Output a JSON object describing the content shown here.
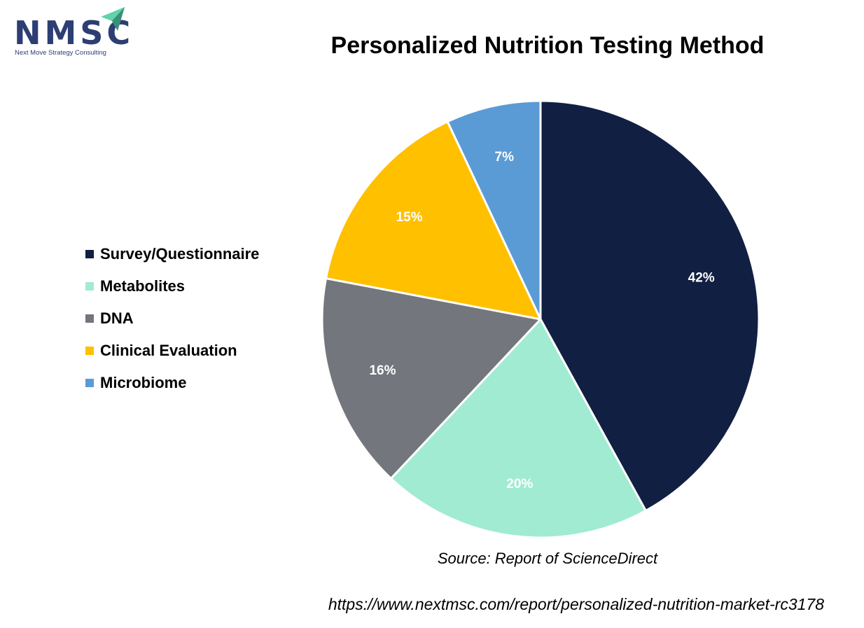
{
  "brand": {
    "name": "NMSC",
    "tagline": "Next Move Strategy Consulting",
    "color": "#2c3e73",
    "accent_color": "#5fd4a9"
  },
  "chart_data": {
    "type": "pie",
    "title": "Personalized Nutrition Testing Method",
    "start_angle_deg": 0,
    "direction": "clockwise",
    "legend_position": "left",
    "slices": [
      {
        "name": "Survey/Questionnaire",
        "value": 42,
        "label": "42%",
        "color": "#111f42"
      },
      {
        "name": "Metabolites",
        "value": 20,
        "label": "20%",
        "color": "#a1ebd2"
      },
      {
        "name": "DNA",
        "value": 16,
        "label": "16%",
        "color": "#73767c"
      },
      {
        "name": "Clinical Evaluation",
        "value": 15,
        "label": "15%",
        "color": "#ffc000"
      },
      {
        "name": "Microbiome",
        "value": 7,
        "label": "7%",
        "color": "#5b9bd5"
      }
    ]
  },
  "footer": {
    "source": "Source: Report of ScienceDirect",
    "url": "https://www.nextmsc.com/report/personalized-nutrition-market-rc3178"
  }
}
